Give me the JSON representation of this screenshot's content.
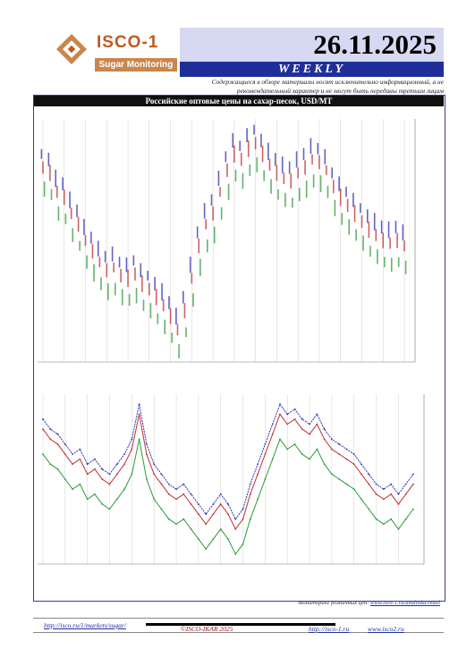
{
  "header": {
    "logo_name": "ISCO-1",
    "logo_tagline": "Sugar Monitoring",
    "date": "26.11.2025",
    "frequency": "WEEKLY",
    "disclaimer": "Содержащиеся в обзоре материалы носят исключительно информационный, а не рекомендательный характер и не могут быть переданы третьим лицам"
  },
  "title": "Российские оптовые цены на сахар-песок, USD/MT",
  "colors": {
    "accent": "#1f2f9a",
    "brand": "#c05a1e",
    "high": "#3030b0",
    "mid": "#c03030",
    "low": "#2f9a3a"
  },
  "chart_data": [
    {
      "type": "candlestick",
      "title": "Российские оптовые цены на сахар-песок, USD/MT",
      "series": [
        {
          "name": "",
          "values": [
            745,
            735,
            700,
            690,
            660,
            640,
            610,
            590,
            570,
            555,
            560,
            545,
            540,
            548,
            530,
            520,
            505,
            490,
            470,
            445,
            480,
            540,
            600,
            640,
            660,
            700,
            740,
            770,
            760,
            780,
            790,
            770,
            750,
            735,
            725,
            720,
            735,
            745,
            760,
            755,
            740,
            710,
            690,
            675,
            660,
            645,
            630,
            620,
            610,
            605,
            610,
            600
          ]
        },
        {
          "name": "",
          "values": [
            720,
            710,
            675,
            665,
            635,
            615,
            585,
            565,
            545,
            530,
            535,
            520,
            515,
            523,
            505,
            495,
            480,
            465,
            445,
            420,
            455,
            515,
            575,
            615,
            635,
            675,
            715,
            745,
            735,
            755,
            765,
            745,
            725,
            710,
            700,
            695,
            710,
            720,
            735,
            730,
            715,
            685,
            665,
            650,
            635,
            620,
            605,
            595,
            585,
            580,
            585,
            575
          ]
        },
        {
          "name": "",
          "values": [
            680,
            670,
            635,
            625,
            595,
            575,
            545,
            525,
            505,
            490,
            495,
            480,
            475,
            483,
            465,
            455,
            440,
            425,
            405,
            380,
            415,
            475,
            535,
            575,
            595,
            635,
            675,
            705,
            695,
            715,
            725,
            705,
            685,
            670,
            660,
            655,
            670,
            680,
            695,
            690,
            675,
            645,
            625,
            610,
            595,
            580,
            565,
            555,
            545,
            540,
            545,
            535
          ]
        }
      ]
    },
    {
      "type": "line",
      "series": [
        {
          "name": "",
          "values": [
            690,
            670,
            660,
            640,
            620,
            630,
            600,
            610,
            590,
            580,
            600,
            620,
            650,
            720,
            640,
            600,
            580,
            560,
            550,
            560,
            540,
            520,
            500,
            520,
            540,
            520,
            490,
            510,
            560,
            600,
            640,
            680,
            720,
            700,
            710,
            690,
            680,
            700,
            670,
            650,
            640,
            630,
            620,
            600,
            580,
            560,
            550,
            560,
            540,
            560,
            580
          ]
        },
        {
          "name": "",
          "values": [
            670,
            650,
            640,
            620,
            600,
            610,
            580,
            590,
            570,
            560,
            580,
            600,
            630,
            700,
            620,
            580,
            560,
            540,
            530,
            540,
            520,
            500,
            480,
            500,
            520,
            500,
            470,
            490,
            540,
            580,
            620,
            660,
            700,
            680,
            690,
            670,
            660,
            680,
            650,
            630,
            620,
            610,
            600,
            580,
            560,
            540,
            530,
            540,
            520,
            540,
            560
          ]
        },
        {
          "name": "",
          "values": [
            620,
            600,
            590,
            570,
            550,
            560,
            530,
            540,
            520,
            510,
            530,
            550,
            580,
            650,
            570,
            530,
            510,
            490,
            480,
            490,
            470,
            450,
            430,
            450,
            470,
            450,
            420,
            440,
            490,
            530,
            570,
            610,
            650,
            630,
            640,
            620,
            610,
            630,
            600,
            580,
            570,
            560,
            550,
            530,
            510,
            490,
            480,
            490,
            470,
            490,
            510
          ]
        }
      ]
    }
  ],
  "footer": {
    "note_prefix": "Мониторинг розничных цен: ",
    "note_link": "www.isco-1.ru/analitika/retail",
    "url": "http://isco.ru/1/markets/sugar/",
    "copyright": "©ISCO-IKAR 2025",
    "site1": "http://isco-1.ru",
    "site2": "www.isco2.ru"
  }
}
